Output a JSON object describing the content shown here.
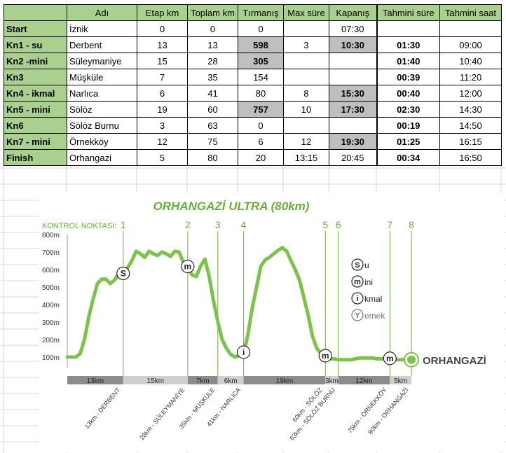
{
  "table": {
    "headers": [
      "",
      "Adı",
      "Etap km",
      "Toplam km",
      "Tırmanış",
      "Max süre",
      "Kapanış",
      "Tahmini süre",
      "Tahmini saat"
    ],
    "rows": [
      {
        "point": "Start",
        "name": "İznik",
        "etap": "0",
        "toplam": "0",
        "tirmanis": "0",
        "max": "",
        "kapanis": "07:30",
        "tsure": "",
        "tsaat": "",
        "hl_tirmanis": false,
        "hl_kapanis": false
      },
      {
        "point": "Kn1 - su",
        "name": "Derbent",
        "etap": "13",
        "toplam": "13",
        "tirmanis": "598",
        "max": "3",
        "kapanis": "10:30",
        "tsure": "01:30",
        "tsaat": "09:00",
        "hl_tirmanis": true,
        "hl_kapanis": true
      },
      {
        "point": "Kn2 -mini",
        "name": "Süleymaniye",
        "etap": "15",
        "toplam": "28",
        "tirmanis": "305",
        "max": "",
        "kapanis": "",
        "tsure": "01:40",
        "tsaat": "10:40",
        "hl_tirmanis": true,
        "hl_kapanis": false
      },
      {
        "point": "Kn3",
        "name": "Müşküle",
        "etap": "7",
        "toplam": "35",
        "tirmanis": "154",
        "max": "",
        "kapanis": "",
        "tsure": "00:39",
        "tsaat": "11:20",
        "hl_tirmanis": false,
        "hl_kapanis": false
      },
      {
        "point": "Kn4 - ikmal",
        "name": "Narlıca",
        "etap": "6",
        "toplam": "41",
        "tirmanis": "80",
        "max": "8",
        "kapanis": "15:30",
        "tsure": "00:40",
        "tsaat": "12:00",
        "hl_tirmanis": false,
        "hl_kapanis": true
      },
      {
        "point": "Kn5 - mini",
        "name": "Sölöz",
        "etap": "19",
        "toplam": "60",
        "tirmanis": "757",
        "max": "10",
        "kapanis": "17:30",
        "tsure": "02:30",
        "tsaat": "14:30",
        "hl_tirmanis": true,
        "hl_kapanis": true
      },
      {
        "point": "Kn6",
        "name": "Sölöz Burnu",
        "etap": "3",
        "toplam": "63",
        "tirmanis": "0",
        "max": "",
        "kapanis": "",
        "tsure": "00:19",
        "tsaat": "14:50",
        "hl_tirmanis": false,
        "hl_kapanis": false
      },
      {
        "point": "Kn7 - mini",
        "name": "Örnekköy",
        "etap": "12",
        "toplam": "75",
        "tirmanis": "6",
        "max": "12",
        "kapanis": "19:30",
        "tsure": "01:25",
        "tsaat": "16:15",
        "hl_tirmanis": false,
        "hl_kapanis": true
      },
      {
        "point": "Finish",
        "name": "Orhangazi",
        "etap": "5",
        "toplam": "80",
        "tirmanis": "20",
        "max": "13:15",
        "kapanis": "20:45",
        "tsure": "00:34",
        "tsaat": "16:50",
        "hl_tirmanis": false,
        "hl_kapanis": false
      }
    ]
  },
  "chart_data": {
    "type": "line",
    "title": "ORHANGAZİ ULTRA (80km)",
    "control_label": "KONTROL NOKTASI:",
    "control_points": [
      {
        "num": "1",
        "km": 13
      },
      {
        "num": "2",
        "km": 28
      },
      {
        "num": "3",
        "km": 35
      },
      {
        "num": "4",
        "km": 41
      },
      {
        "num": "5",
        "km": 60
      },
      {
        "num": "6",
        "km": 63
      },
      {
        "num": "7",
        "km": 75
      },
      {
        "num": "8",
        "km": 80
      }
    ],
    "y_ticks": [
      "100m",
      "200m",
      "300m",
      "400m",
      "500m",
      "600m",
      "700m",
      "800m"
    ],
    "ylim": [
      0,
      800
    ],
    "xlim": [
      0,
      80
    ],
    "elevation": [
      [
        0,
        100
      ],
      [
        2,
        100
      ],
      [
        3,
        120
      ],
      [
        4,
        200
      ],
      [
        5,
        330
      ],
      [
        6,
        430
      ],
      [
        7,
        520
      ],
      [
        8,
        545
      ],
      [
        9,
        545
      ],
      [
        10,
        520
      ],
      [
        11,
        540
      ],
      [
        12,
        580
      ],
      [
        13,
        570
      ],
      [
        14,
        610
      ],
      [
        15,
        650
      ],
      [
        16,
        705
      ],
      [
        17,
        690
      ],
      [
        18,
        670
      ],
      [
        19,
        705
      ],
      [
        20,
        690
      ],
      [
        21,
        680
      ],
      [
        22,
        700
      ],
      [
        23,
        690
      ],
      [
        24,
        675
      ],
      [
        25,
        705
      ],
      [
        26,
        700
      ],
      [
        27,
        640
      ],
      [
        28,
        610
      ],
      [
        29,
        570
      ],
      [
        30,
        560
      ],
      [
        31,
        620
      ],
      [
        32,
        660
      ],
      [
        33,
        560
      ],
      [
        34,
        420
      ],
      [
        35,
        300
      ],
      [
        36,
        200
      ],
      [
        37,
        150
      ],
      [
        38,
        115
      ],
      [
        39,
        100
      ],
      [
        40,
        110
      ],
      [
        41,
        120
      ],
      [
        42,
        230
      ],
      [
        43,
        380
      ],
      [
        44,
        500
      ],
      [
        45,
        620
      ],
      [
        46,
        655
      ],
      [
        47,
        670
      ],
      [
        48,
        690
      ],
      [
        49,
        710
      ],
      [
        50,
        725
      ],
      [
        51,
        705
      ],
      [
        52,
        650
      ],
      [
        53,
        600
      ],
      [
        54,
        540
      ],
      [
        55,
        440
      ],
      [
        56,
        340
      ],
      [
        57,
        220
      ],
      [
        58,
        150
      ],
      [
        59,
        120
      ],
      [
        60,
        100
      ],
      [
        61,
        90
      ],
      [
        62,
        90
      ],
      [
        63,
        85
      ],
      [
        64,
        85
      ],
      [
        65,
        85
      ],
      [
        66,
        85
      ],
      [
        67,
        90
      ],
      [
        68,
        95
      ],
      [
        69,
        95
      ],
      [
        70,
        95
      ],
      [
        71,
        95
      ],
      [
        72,
        90
      ],
      [
        73,
        90
      ],
      [
        74,
        90
      ],
      [
        75,
        85
      ],
      [
        76,
        85
      ],
      [
        77,
        85
      ],
      [
        78,
        85
      ],
      [
        79,
        85
      ],
      [
        80,
        85
      ]
    ],
    "markers": [
      {
        "letter": "S",
        "km": 13
      },
      {
        "letter": "m",
        "km": 28
      },
      {
        "letter": "i",
        "km": 41
      },
      {
        "letter": "m",
        "km": 60
      },
      {
        "letter": "m",
        "km": 75
      }
    ],
    "legend": [
      {
        "letter": "S",
        "text": "u"
      },
      {
        "letter": "m",
        "text": "ini"
      },
      {
        "letter": "i",
        "text": "kmal"
      },
      {
        "letter": "Y",
        "text": "emek"
      }
    ],
    "finish_label": "ORHANGAZİ",
    "segments": [
      {
        "label": "13km",
        "from": 0,
        "to": 13
      },
      {
        "label": "15km",
        "from": 13,
        "to": 28
      },
      {
        "label": "7km",
        "from": 28,
        "to": 35
      },
      {
        "label": "6km",
        "from": 35,
        "to": 41
      },
      {
        "label": "19km",
        "from": 41,
        "to": 60
      },
      {
        "label": "3km",
        "from": 60,
        "to": 63
      },
      {
        "label": "12km",
        "from": 63,
        "to": 75
      },
      {
        "label": "5km",
        "from": 75,
        "to": 80
      }
    ],
    "location_labels": [
      {
        "text": "13km - DERBENT",
        "km": 13
      },
      {
        "text": "28km - SÜLEYMANİYE",
        "km": 28
      },
      {
        "text": "35km - MÜŞKÜLE",
        "km": 35
      },
      {
        "text": "41km - NARLICA",
        "km": 41
      },
      {
        "text": "60km - SÖLÖZ",
        "km": 60
      },
      {
        "text": "63km - SÖLÖZ BURNU",
        "km": 63
      },
      {
        "text": "75km - ÖRNEKKÖY",
        "km": 75
      },
      {
        "text": "80km - ORHANGAZİ",
        "km": 80
      }
    ],
    "colors": {
      "line": "#7dc24b",
      "accent": "#6aaf3c",
      "segment_dark": "#8c8c8c",
      "segment_light": "#cfcfcf"
    }
  }
}
